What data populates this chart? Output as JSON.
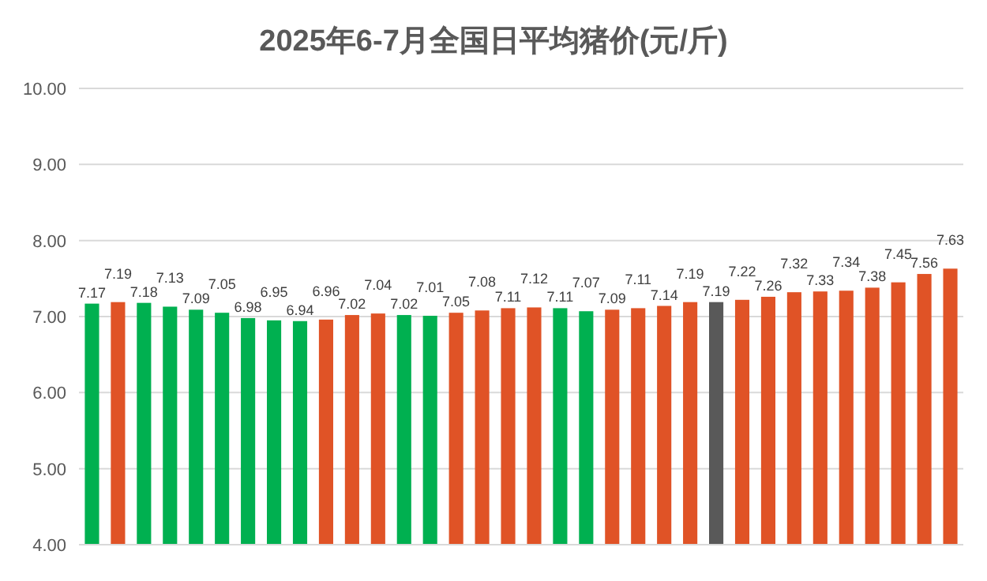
{
  "chart_data": {
    "type": "bar",
    "title": "2025年6-7月全国日平均猪价(元/斤)",
    "categories": [
      null,
      null,
      null,
      null,
      null,
      null,
      null,
      null,
      null,
      null,
      null,
      null,
      null,
      null,
      null,
      null,
      null,
      null,
      null,
      null,
      null,
      null,
      null,
      null,
      null,
      null,
      null,
      null,
      null,
      null,
      null,
      null,
      null,
      null
    ],
    "values": [
      7.17,
      7.19,
      7.18,
      7.13,
      7.09,
      7.05,
      6.98,
      6.95,
      6.94,
      6.96,
      7.02,
      7.04,
      7.02,
      7.01,
      7.05,
      7.08,
      7.11,
      7.12,
      7.11,
      7.07,
      7.09,
      7.11,
      7.14,
      7.19,
      7.19,
      7.22,
      7.26,
      7.32,
      7.33,
      7.34,
      7.38,
      7.45,
      7.56,
      7.63
    ],
    "colors": [
      "#00b050",
      "#e05326",
      "#00b050",
      "#00b050",
      "#00b050",
      "#00b050",
      "#00b050",
      "#00b050",
      "#00b050",
      "#e05326",
      "#e05326",
      "#e05326",
      "#00b050",
      "#00b050",
      "#e05326",
      "#e05326",
      "#e05326",
      "#e05326",
      "#00b050",
      "#00b050",
      "#e05326",
      "#e05326",
      "#e05326",
      "#e05326",
      "#595959",
      "#e05326",
      "#e05326",
      "#e05326",
      "#e05326",
      "#e05326",
      "#e05326",
      "#e05326",
      "#e05326",
      "#e05326"
    ],
    "ylim": [
      4,
      10
    ],
    "yticks": [
      {
        "value": 4,
        "label": "4.00"
      },
      {
        "value": 5,
        "label": "5.00"
      },
      {
        "value": 6,
        "label": "6.00"
      },
      {
        "value": 7,
        "label": "7.00"
      },
      {
        "value": 8,
        "label": "8.00"
      },
      {
        "value": 9,
        "label": "9.00"
      },
      {
        "value": 10,
        "label": "10.00"
      }
    ],
    "grid": "y",
    "data_labels": true
  }
}
